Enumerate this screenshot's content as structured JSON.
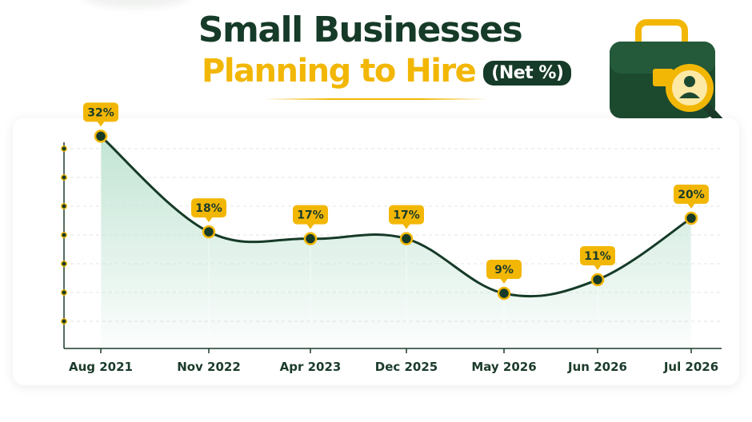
{
  "header": {
    "title_line1": "Small Businesses",
    "title_line2": "Planning to Hire",
    "title_badge": "(Net %)"
  },
  "colors": {
    "dark_green": "#163b28",
    "accent_yellow": "#f2b705",
    "area_fill": "#bfe3d2"
  },
  "illustration": {
    "icon": "briefcase-with-magnifier-person-icon"
  },
  "chart_data": {
    "type": "line",
    "title": "Small Businesses Planning to Hire",
    "xlabel": "",
    "ylabel": "",
    "categories": [
      "Aug 2021",
      "Nov 2022",
      "Apr 2023",
      "Dec 2025",
      "May 2026",
      "Jun 2026",
      "Jul 2026"
    ],
    "series": [
      {
        "values": [
          32,
          18,
          17,
          17,
          9,
          11,
          20
        ],
        "labels": [
          "32%",
          "18%",
          "17%",
          "17%",
          "9%",
          "11%",
          "20%"
        ]
      }
    ],
    "ylim": [
      0,
      35
    ],
    "grid": true,
    "area_fill": true
  }
}
